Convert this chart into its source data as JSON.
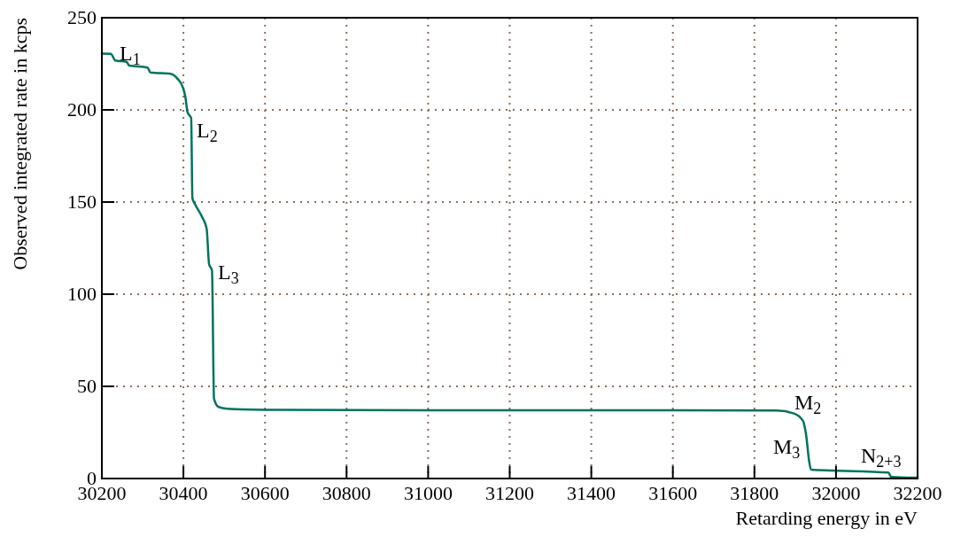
{
  "chart_data": {
    "type": "line",
    "xlabel": "Retarding energy in eV",
    "ylabel": "Observed integrated rate in kcps",
    "xlim": [
      30200,
      32200
    ],
    "xticks": [
      30200,
      30400,
      30600,
      30800,
      31000,
      31200,
      31400,
      31600,
      31800,
      32000,
      32200
    ],
    "ylim": [
      0,
      250
    ],
    "yticks": [
      0,
      50,
      100,
      150,
      200,
      250
    ],
    "grid": true,
    "line_style": "solid",
    "series": [
      {
        "color": "#00735f",
        "x": [
          30200,
          30222,
          30233,
          30261,
          30267,
          30312,
          30319,
          30370,
          30385,
          30399,
          30405,
          30410,
          30419,
          30422,
          30428,
          30446,
          30457,
          30463,
          30470,
          30475,
          30486,
          30515,
          30634,
          31000,
          31500,
          31854,
          31897,
          31919,
          31927,
          31934,
          31939,
          31992,
          32128,
          32136,
          32194,
          32200
        ],
        "values": [
          230.5,
          230.4,
          226.8,
          226,
          224,
          223,
          220.3,
          219.5,
          217,
          212,
          206.7,
          198.7,
          195.5,
          152.2,
          149,
          141.8,
          135.4,
          116.2,
          113,
          43.3,
          38.8,
          37.7,
          37.2,
          37,
          37,
          36.9,
          35.3,
          31.3,
          23.2,
          9.6,
          4.8,
          4.3,
          3.2,
          0.8,
          0.5,
          0.5
        ]
      }
    ],
    "annotations": [
      "L$_{1}$",
      "L$_{2}$",
      "L$_{3}$",
      "M$_{2}$",
      "M$_{3}$",
      "N$_{2+3}$"
    ]
  }
}
